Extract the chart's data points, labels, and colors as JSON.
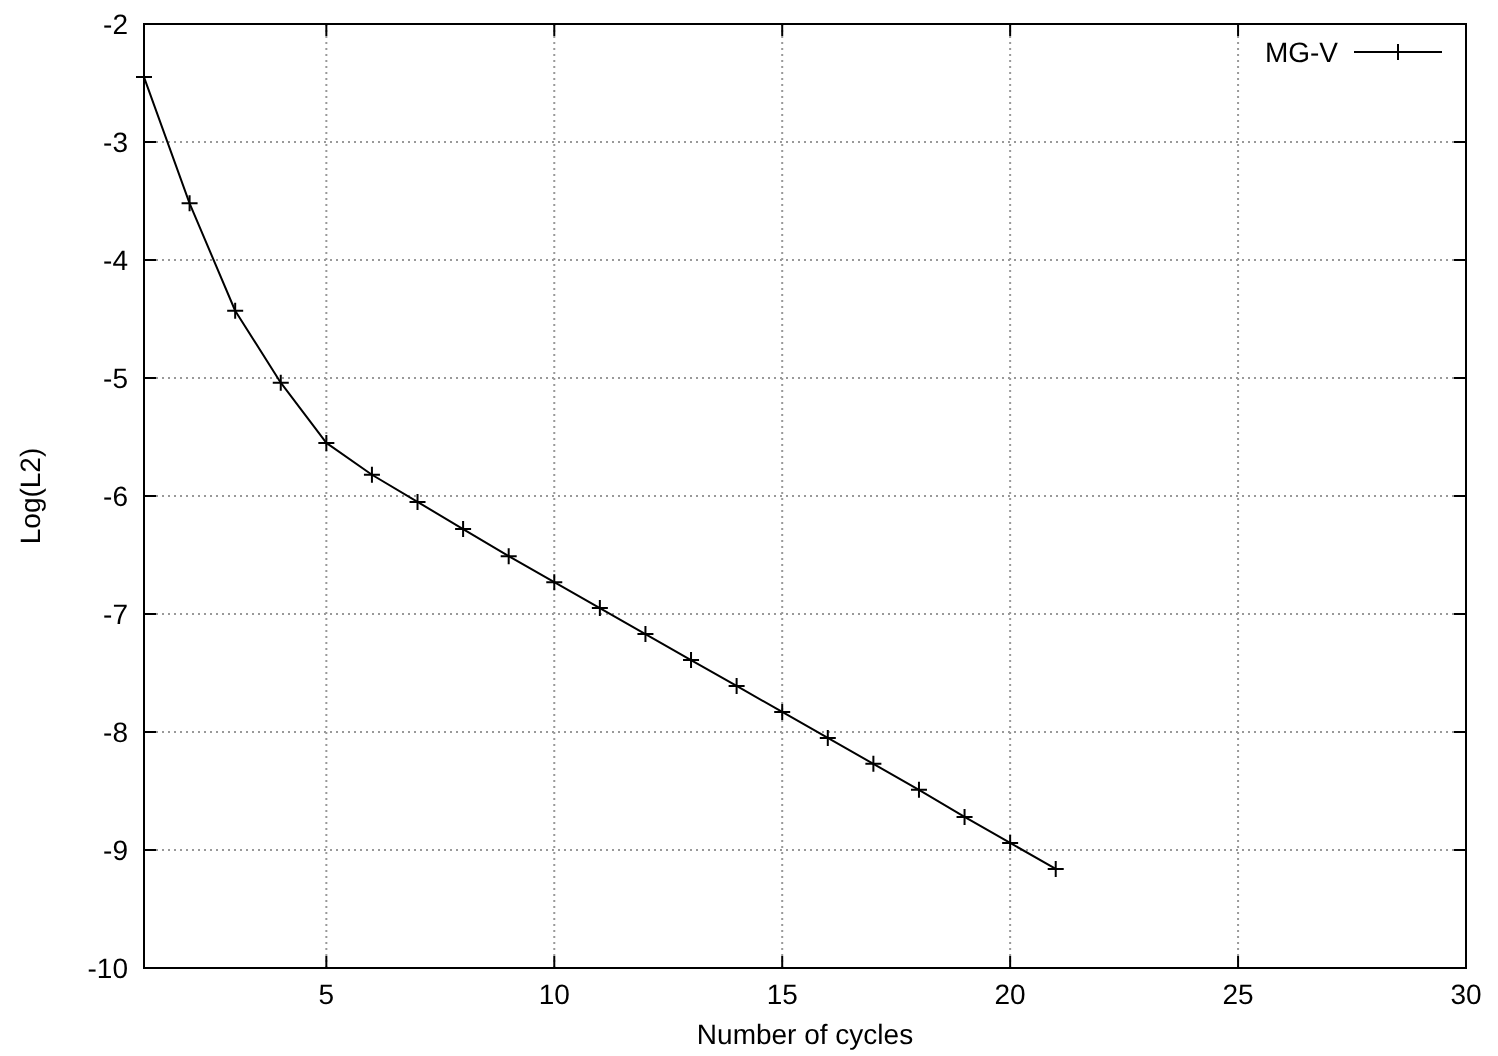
{
  "chart_data": {
    "type": "line",
    "xlabel": "Number of cycles",
    "ylabel": "Log(L2)",
    "x": [
      1,
      2,
      3,
      4,
      5,
      6,
      7,
      8,
      9,
      10,
      11,
      12,
      13,
      14,
      15,
      16,
      17,
      18,
      19,
      20,
      21
    ],
    "series": [
      {
        "name": "MG-V",
        "color": "#000000",
        "values": [
          -2.45,
          -3.52,
          -4.43,
          -5.04,
          -5.55,
          -5.82,
          -6.05,
          -6.28,
          -6.51,
          -6.73,
          -6.95,
          -7.17,
          -7.39,
          -7.61,
          -7.83,
          -8.05,
          -8.27,
          -8.49,
          -8.72,
          -8.94,
          -9.16
        ]
      }
    ],
    "xlim": [
      1,
      30
    ],
    "xticks": [
      5,
      10,
      15,
      20,
      25,
      30
    ],
    "ylim": [
      -10,
      -2
    ],
    "yticks": [
      -10,
      -9,
      -8,
      -7,
      -6,
      -5,
      -4,
      -3,
      -2
    ],
    "grid": true,
    "legend": "top right",
    "marker": "cross",
    "line_style": "solid"
  }
}
